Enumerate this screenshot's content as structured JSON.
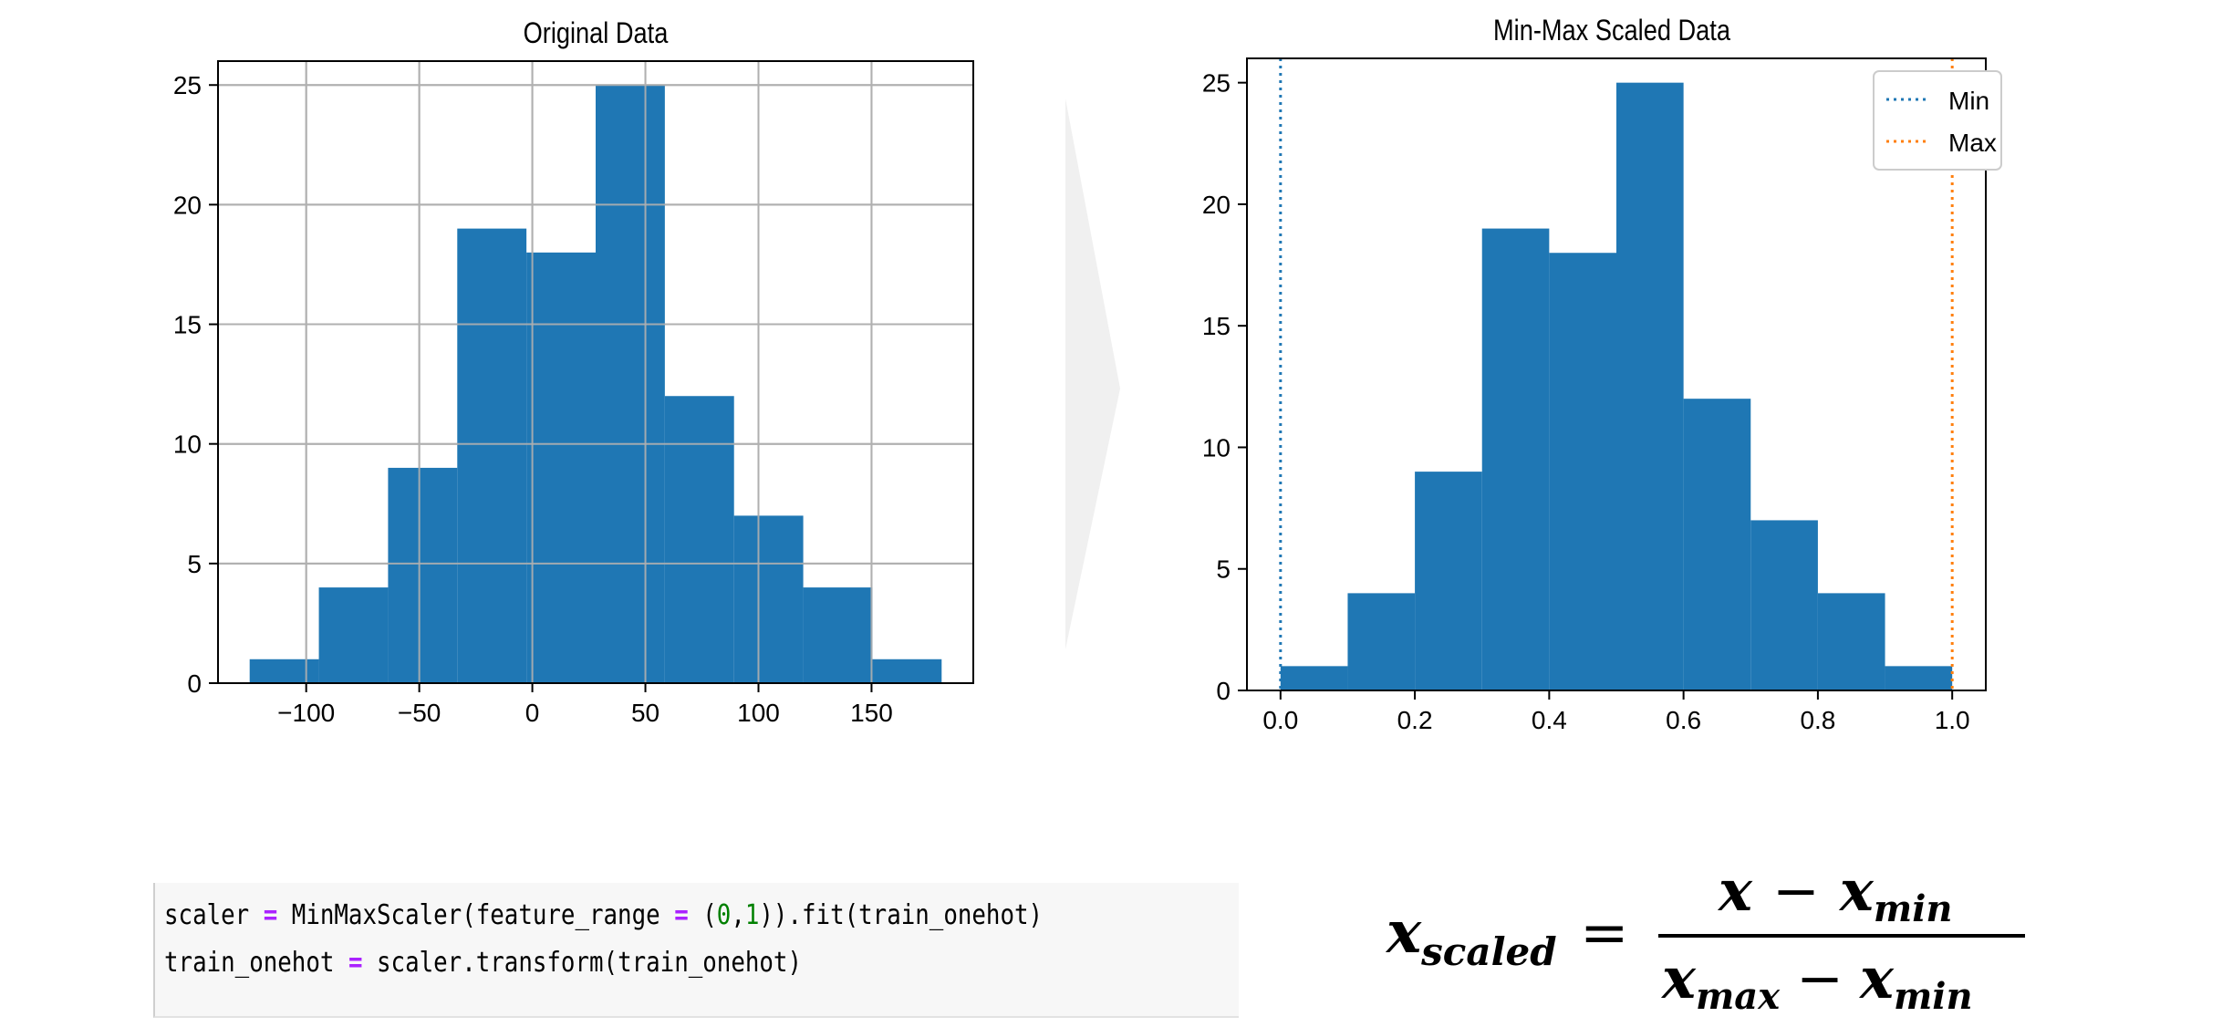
{
  "colors": {
    "bar": "#1f77b4",
    "min_line": "#1f77b4",
    "max_line": "#ff7f0e",
    "grid": "#b0b0b0",
    "arrow": "#f0f0f0",
    "code_operator": "#aa22ff",
    "code_number": "#008000"
  },
  "chart_data": [
    {
      "type": "bar",
      "title": "Original Data",
      "xlabel": "",
      "ylabel": "",
      "bin_edges": [
        -125,
        -94.4,
        -63.8,
        -33.2,
        -2.6,
        28,
        58.6,
        89.2,
        119.8,
        150.4,
        181
      ],
      "values": [
        1,
        4,
        9,
        19,
        18,
        25,
        12,
        7,
        4,
        1
      ],
      "xlim": [
        -139,
        195
      ],
      "ylim": [
        0,
        26
      ],
      "xticks": [
        -100,
        -50,
        0,
        50,
        100,
        150
      ],
      "xtick_labels": [
        "−100",
        "−50",
        "0",
        "50",
        "100",
        "150"
      ],
      "yticks": [
        0,
        5,
        10,
        15,
        20,
        25
      ],
      "ytick_labels": [
        "0",
        "5",
        "10",
        "15",
        "20",
        "25"
      ],
      "grid": true
    },
    {
      "type": "bar",
      "title": "Min-Max Scaled Data",
      "xlabel": "",
      "ylabel": "",
      "bin_edges": [
        0,
        0.1,
        0.2,
        0.3,
        0.4,
        0.5,
        0.6,
        0.7,
        0.8,
        0.9,
        1.0
      ],
      "values": [
        1,
        4,
        9,
        19,
        18,
        25,
        12,
        7,
        4,
        1
      ],
      "xlim": [
        -0.05,
        1.05
      ],
      "ylim": [
        0,
        26
      ],
      "xticks": [
        0,
        0.2,
        0.4,
        0.6,
        0.8,
        1.0
      ],
      "xtick_labels": [
        "0.0",
        "0.2",
        "0.4",
        "0.6",
        "0.8",
        "1.0"
      ],
      "yticks": [
        0,
        5,
        10,
        15,
        20,
        25
      ],
      "ytick_labels": [
        "0",
        "5",
        "10",
        "15",
        "20",
        "25"
      ],
      "grid": false,
      "vlines": [
        {
          "name": "Min",
          "x": 0,
          "style": "dotted",
          "color": "#1f77b4"
        },
        {
          "name": "Max",
          "x": 1,
          "style": "dotted",
          "color": "#ff7f0e"
        }
      ],
      "legend": {
        "position": "top-right",
        "entries": [
          "Min",
          "Max"
        ]
      }
    }
  ],
  "code": {
    "line1": {
      "a": "scaler ",
      "op": "=",
      "b": " MinMaxScaler(feature_range ",
      "op2": "=",
      "c": " (",
      "n1": "0",
      "comma": ",",
      "n2": "1",
      "d": ")).fit(train_onehot)"
    },
    "line2": {
      "a": "train_onehot ",
      "op": "=",
      "b": " scaler.transform(train_onehot)"
    }
  },
  "formula": {
    "lhs_var": "x",
    "lhs_sub": "scaled",
    "equals": "=",
    "num_var1": "x",
    "minus": "−",
    "num_var2": "x",
    "num_sub2": "min",
    "den_var1": "x",
    "den_sub1": "max",
    "den_var2": "x",
    "den_sub2": "min"
  }
}
